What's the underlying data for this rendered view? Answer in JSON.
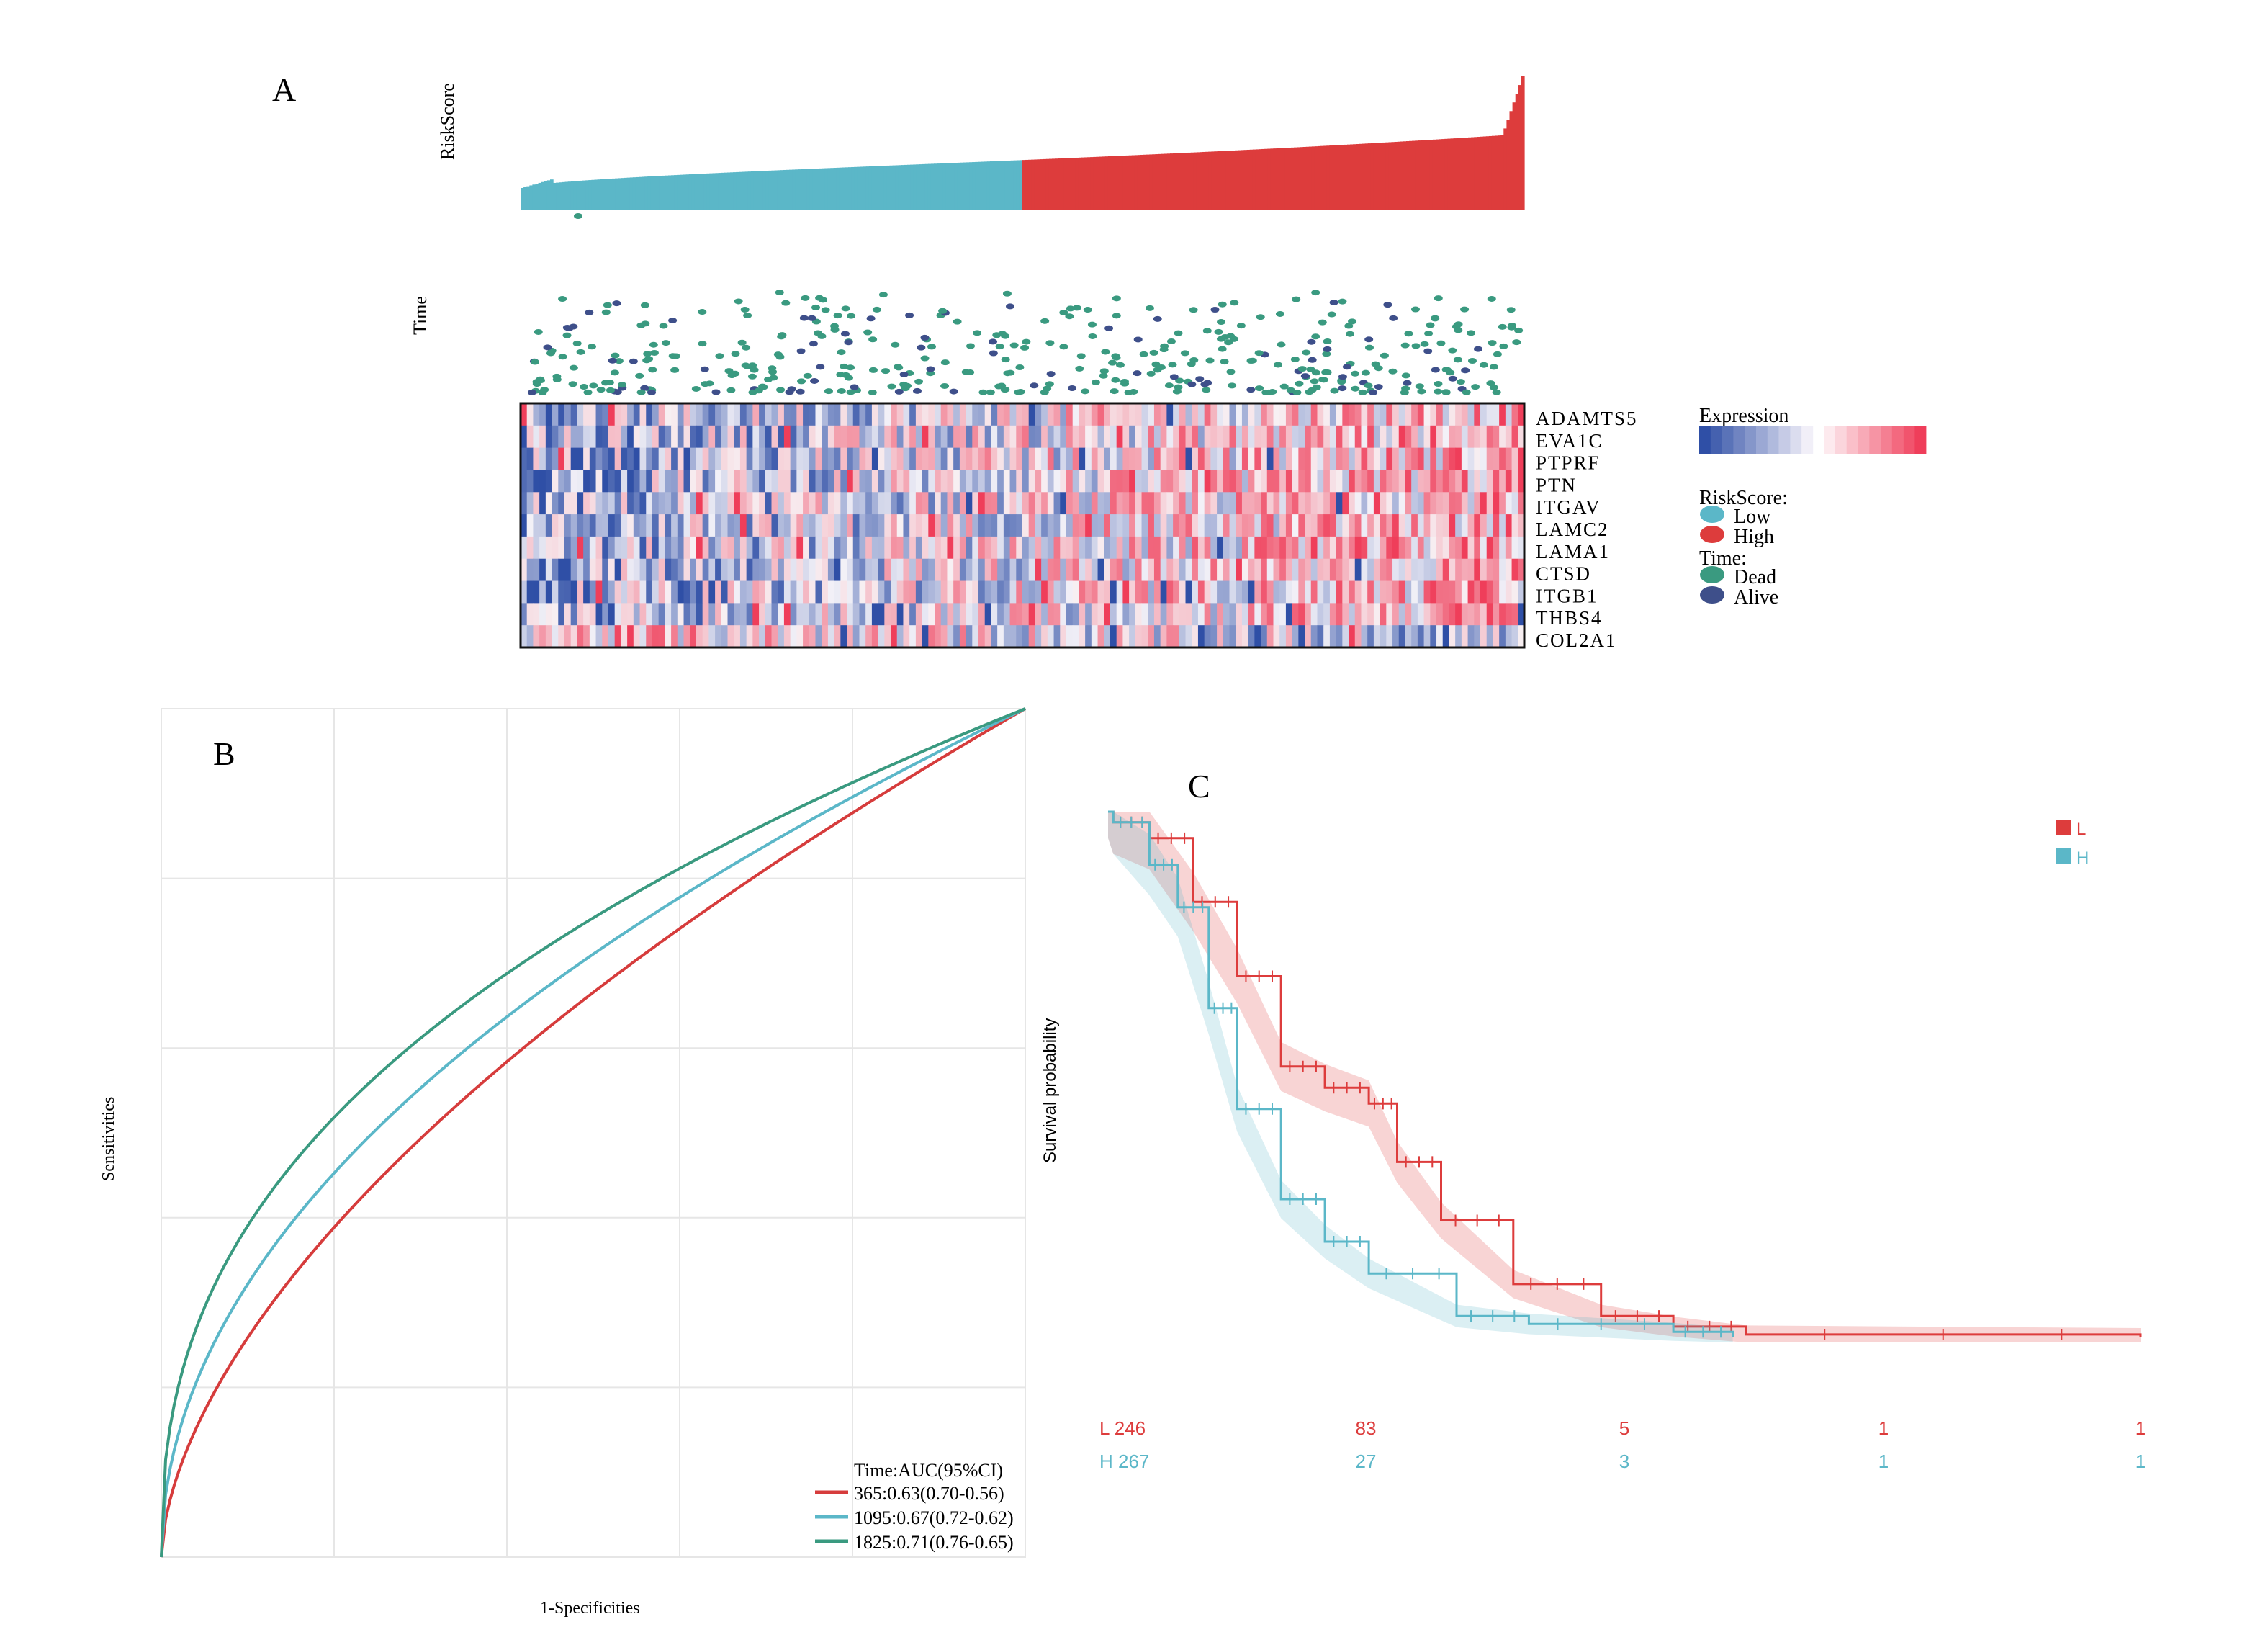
{
  "colors": {
    "low": "#5bb7c8",
    "high": "#dd3c3c",
    "dead": "#3a9a80",
    "alive": "#3e4f8a",
    "blue": "#2f4fa6",
    "red": "#ef3e5a",
    "roc365": "#d63c3c",
    "roc1095": "#5bb7c8",
    "roc1825": "#3a9a80"
  },
  "panelA": {
    "letter": "A",
    "riskscore_label": "RiskScore",
    "time_label": "Time",
    "genes": [
      "ADAMTS5",
      "EVA1C",
      "PTPRF",
      "PTN",
      "ITGAV",
      "LAMC2",
      "LAMA1",
      "CTSD",
      "ITGB1",
      "THBS4",
      "COL2A1"
    ],
    "legend": {
      "expression_title": "Expression",
      "riskscore_title": "RiskScore:",
      "low": "Low",
      "high": "High",
      "time_title": "Time:",
      "dead": "Dead",
      "alive": "Alive"
    }
  },
  "chart_data": [
    {
      "type": "bar",
      "panel": "A",
      "description_of_series": "sorted risk scores; low group (cyan) then high group (red)",
      "groups": [
        "Low",
        "High"
      ],
      "grid": false
    },
    {
      "type": "line",
      "panel": "B",
      "letter": "B",
      "xlabel": "1-Specificities",
      "ylabel": "Sensitivities",
      "xlim": [
        0,
        1
      ],
      "ylim": [
        0,
        1
      ],
      "grid": true,
      "legend_title": "Time:AUC(95%CI)",
      "legend_position": "bottom-right",
      "series": [
        {
          "name": "365:0.63(0.70-0.56)",
          "time": 365,
          "auc": 0.63,
          "color_key": "roc365"
        },
        {
          "name": "1095:0.67(0.72-0.62)",
          "time": 1095,
          "auc": 0.67,
          "color_key": "roc1095"
        },
        {
          "name": "1825:0.71(0.76-0.65)",
          "time": 1825,
          "auc": 0.71,
          "color_key": "roc1825"
        }
      ]
    },
    {
      "type": "line",
      "panel": "C",
      "letter": "C",
      "ylabel": "Survival probability",
      "ylim": [
        0,
        1
      ],
      "grid": false,
      "legend_position": "top-right",
      "series": [
        {
          "name": "L",
          "color_key": "high",
          "x": [
            0,
            0.02,
            0.16,
            0.33,
            0.5,
            0.67,
            0.84,
            1.01,
            1.12,
            1.29,
            1.57,
            1.91,
            2.19,
            2.47,
            4.0
          ],
          "y": [
            1.0,
            0.98,
            0.95,
            0.83,
            0.69,
            0.52,
            0.48,
            0.45,
            0.34,
            0.23,
            0.11,
            0.05,
            0.03,
            0.015,
            0.01
          ]
        },
        {
          "name": "H",
          "color_key": "low",
          "x": [
            0,
            0.02,
            0.16,
            0.27,
            0.39,
            0.5,
            0.67,
            0.84,
            1.01,
            1.35,
            1.63,
            2.19,
            2.42
          ],
          "y": [
            1.0,
            0.98,
            0.9,
            0.82,
            0.63,
            0.44,
            0.27,
            0.19,
            0.13,
            0.05,
            0.035,
            0.02,
            0.01
          ]
        }
      ],
      "risk_table": [
        {
          "label": "L",
          "counts": [
            "246",
            "83",
            "5",
            "1",
            "1"
          ],
          "color_key": "high"
        },
        {
          "label": "H",
          "counts": [
            "267",
            "27",
            "3",
            "1",
            "1"
          ],
          "color_key": "low"
        }
      ]
    }
  ]
}
